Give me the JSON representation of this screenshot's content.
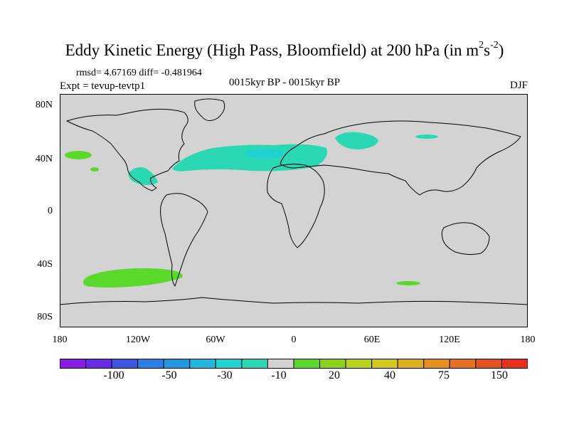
{
  "title": {
    "main": "Eddy Kinetic Energy (High Pass, Bloomfield) at 200 hPa (in m",
    "sup1": "2",
    "mid": "s",
    "sup2": "-2",
    "close": ")"
  },
  "stats": "rmsd= 4.67169 diff= -0.481964",
  "experiment": "Expt = tevup-tevtp1",
  "period": "0015kyr BP - 0015kyr BP",
  "season": "DJF",
  "map": {
    "land_color": "#d3d3d3",
    "lat_labels": [
      "80N",
      "40N",
      "0",
      "40S",
      "80S"
    ],
    "lon_labels": [
      "180",
      "120W",
      "60W",
      "0",
      "60E",
      "120E",
      "180"
    ]
  },
  "colorbar": {
    "colors": [
      "#8a1ae6",
      "#6a2ae6",
      "#3d56e6",
      "#2a7ee6",
      "#2198e0",
      "#21b8e0",
      "#21d2d2",
      "#2ad9b4",
      "#d3d3d3",
      "#5ad92a",
      "#8ad21e",
      "#b8d21e",
      "#d2c81e",
      "#deb01e",
      "#e68e1e",
      "#e6701e",
      "#e6501e",
      "#e6301e"
    ],
    "labels": [
      "-100",
      "-50",
      "-30",
      "-10",
      "20",
      "40",
      "75",
      "150"
    ]
  }
}
